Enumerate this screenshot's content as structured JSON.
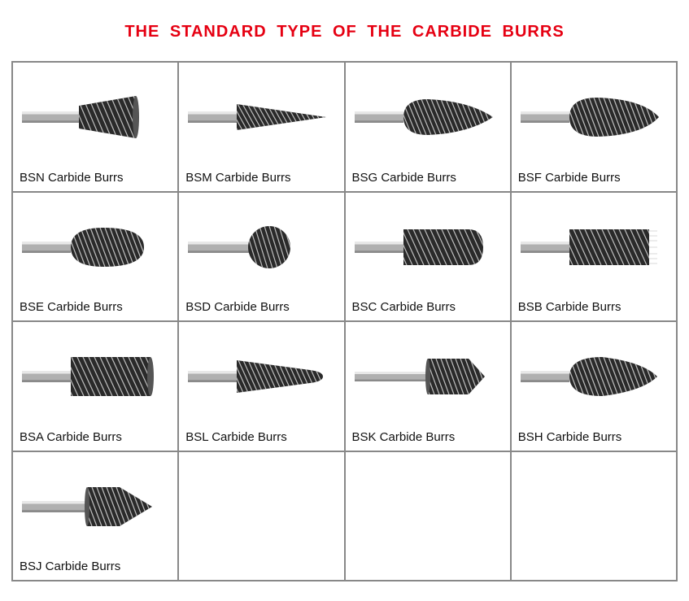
{
  "title": "THE   STANDARD TYPE OF THE CARBIDE BURRS",
  "title_color": "#e60012",
  "title_fontsize": 20,
  "grid": {
    "rows": 4,
    "cols": 4,
    "border_color": "#888888",
    "cell_bg": "#ffffff"
  },
  "burr_colors": {
    "shank": "#b0b0b0",
    "shank_hilite": "#e8e8e8",
    "head_dark": "#2a2a2a",
    "head_mid": "#555555",
    "head_light": "#9a9a9a",
    "flute": "#d0d0d0"
  },
  "items": [
    {
      "shape": "inv_cone",
      "label": "BSN Carbide Burrs"
    },
    {
      "shape": "cone_point",
      "label": "BSM Carbide Burrs"
    },
    {
      "shape": "tree_point",
      "label": "BSG Carbide Burrs"
    },
    {
      "shape": "tree_radius",
      "label": "BSF Carbide Burrs"
    },
    {
      "shape": "oval",
      "label": "BSE Carbide Burrs"
    },
    {
      "shape": "ball",
      "label": "BSD Carbide Burrs"
    },
    {
      "shape": "cyl_radius",
      "label": "BSC Carbide Burrs"
    },
    {
      "shape": "cyl_endcut",
      "label": "BSB Carbide Burrs"
    },
    {
      "shape": "cyl_plain",
      "label": "BSA Carbide Burrs"
    },
    {
      "shape": "taper_radius",
      "label": "BSL Carbide Burrs"
    },
    {
      "shape": "countersink90",
      "label": "BSK Carbide Burrs"
    },
    {
      "shape": "flame",
      "label": "BSH Carbide Burrs"
    },
    {
      "shape": "cone60",
      "label": "BSJ Carbide Burrs"
    },
    {
      "shape": "",
      "label": ""
    },
    {
      "shape": "",
      "label": ""
    },
    {
      "shape": "",
      "label": ""
    }
  ]
}
